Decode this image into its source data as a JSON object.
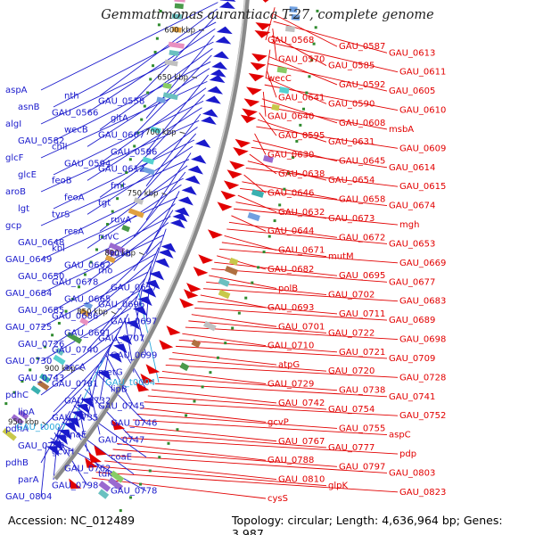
{
  "title": "Gemmatimonas aurantiaca T-27, complete genome",
  "footer": {
    "accession": "Accession: NC_012489",
    "summary": "Topology: circular; Length: 4,636,964 bp; Genes: 3,987"
  },
  "ticks": [
    "600 kbp",
    "650 kbp",
    "700 kbp",
    "750 kbp",
    "800 kbp",
    "850 kbp",
    "900 kbp",
    "950 kbp"
  ],
  "colors": {
    "plus_strand": "#e20000",
    "minus_strand": "#1a1acc",
    "rna": "#2aa8dc",
    "backbone": "#8a8a8a",
    "dots": "#2e8b2e"
  },
  "plus_labels": [
    "GAU_0568",
    "GAU_0587",
    "GAU_0613",
    "GAU_0570",
    "GAU_0585",
    "GAU_0611",
    "wecC",
    "GAU_0592",
    "GAU_0605",
    "GAU_0641",
    "GAU_0590",
    "GAU_0610",
    "GAU_0640",
    "GAU_0608",
    "msbA",
    "GAU_0595",
    "GAU_0631",
    "GAU_0609",
    "GAU_0630",
    "GAU_0645",
    "GAU_0614",
    "GAU_0638",
    "GAU_0654",
    "GAU_0615",
    "GAU_0646",
    "GAU_0658",
    "GAU_0674",
    "GAU_0632",
    "GAU_0673",
    "mgh",
    "GAU_0644",
    "GAU_0672",
    "GAU_0653",
    "GAU_0671",
    "mutM",
    "GAU_0669",
    "GAU_0682",
    "GAU_0695",
    "GAU_0677",
    "polB",
    "GAU_0702",
    "GAU_0683",
    "GAU_0693",
    "GAU_0711",
    "GAU_0689",
    "GAU_0701",
    "GAU_0722",
    "GAU_0698",
    "GAU_0710",
    "GAU_0721",
    "GAU_0709",
    "atpG",
    "GAU_0720",
    "GAU_0728",
    "GAU_0729",
    "GAU_0738",
    "GAU_0741",
    "GAU_0742",
    "GAU_0754",
    "GAU_0752",
    "gcvP",
    "GAU_0755",
    "aspC",
    "GAU_0767",
    "GAU_0777",
    "pdp",
    "GAU_0788",
    "GAU_0797",
    "GAU_0803",
    "GAU_0810",
    "glpK",
    "GAU_0823",
    "cysS"
  ],
  "minus_labels": [
    "aspA",
    "nth",
    "GAU_0558",
    "asnB",
    "GAU_0566",
    "gltA",
    "algI",
    "wecB",
    "GAU_0607",
    "GAU_0582",
    "chlI",
    "GAU_0586",
    "glcF",
    "GAU_0594",
    "GAU_0612",
    "glcE",
    "feoB",
    "fmt",
    "aroB",
    "feoA",
    "tgt",
    "lgt",
    "tyrS",
    "ruvA",
    "gcp",
    "resA",
    "ruvC",
    "GAU_0648",
    "kbl",
    "ruvB",
    "GAU_0649",
    "GAU_0662",
    "rho",
    "GAU_0650",
    "GAU_0678",
    "GAU_0657",
    "GAU_0684",
    "GAU_0665",
    "GAU_0696",
    "GAU_0685",
    "GAU_0686",
    "GAU_0697",
    "GAU_0725",
    "GAU_0691",
    "GAU_0707",
    "GAU_0726",
    "GAU_0740",
    "GAU_0699",
    "GAU_0730",
    "accA",
    "metG",
    "GAU_0743",
    "GAU_0731",
    "lipB",
    "pdhC",
    "GAU_0732",
    "GAU_0745",
    "lipA",
    "GAU_0735",
    "GAU_0746",
    "pdhA",
    "dnaE",
    "GAU_0747",
    "GAU_0759",
    "gcvH",
    "coaE",
    "pdhB",
    "GAU_0762",
    "tdk",
    "parA",
    "GAU_0798",
    "GAU_0778",
    "GAU_0804"
  ],
  "rna_labels": [
    "GAU_t0004",
    "GAU_t0007"
  ]
}
